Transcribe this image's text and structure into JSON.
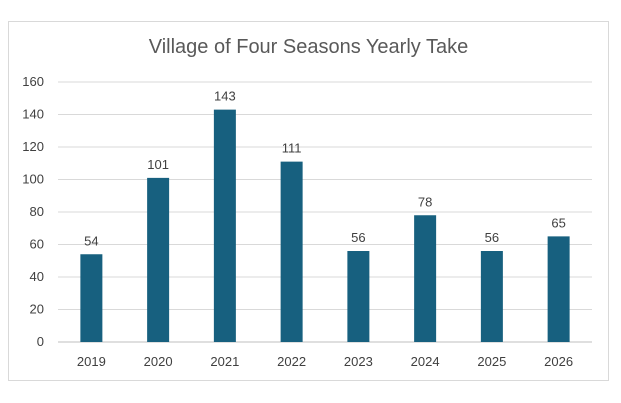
{
  "chart_data": {
    "type": "bar",
    "title": "Village of Four Seasons Yearly Take",
    "categories": [
      "2019",
      "2020",
      "2021",
      "2022",
      "2023",
      "2024",
      "2025",
      "2026"
    ],
    "values": [
      54,
      101,
      143,
      111,
      56,
      78,
      56,
      65
    ],
    "xlabel": "",
    "ylabel": "",
    "ylim": [
      0,
      160
    ],
    "yticks": [
      0,
      20,
      40,
      60,
      80,
      100,
      120,
      140,
      160
    ],
    "grid": true,
    "legend": "none",
    "bar_color": "#17607f",
    "data_labels": true
  }
}
